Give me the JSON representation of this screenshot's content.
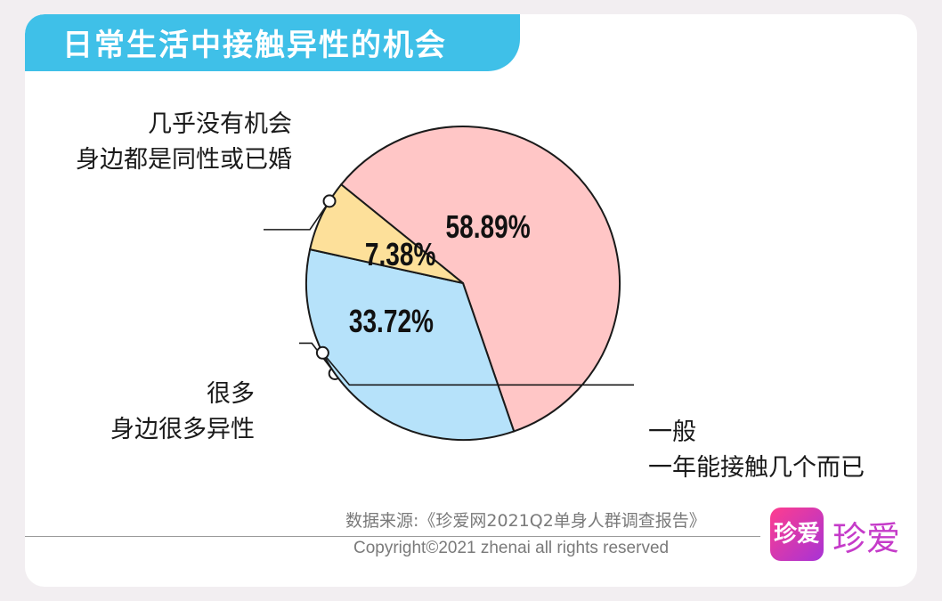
{
  "header": {
    "title": "日常生活中接触异性的机会"
  },
  "chart_data": {
    "type": "pie",
    "title": "日常生活中接触异性的机会",
    "slices": [
      {
        "key": "rare",
        "value": 58.89,
        "label": "58.89%",
        "color": "#ffc6c6",
        "legend_line1": "几乎没有机会",
        "legend_line2": "身边都是同性或已婚"
      },
      {
        "key": "general",
        "value": 33.72,
        "label": "33.72%",
        "color": "#b6e2fa",
        "legend_line1": "一般",
        "legend_line2": "一年能接触几个而已"
      },
      {
        "key": "many",
        "value": 7.38,
        "label": "7.38%",
        "color": "#fde09a",
        "legend_line1": "很多",
        "legend_line2": "身边很多异性"
      }
    ]
  },
  "footer": {
    "source": "数据来源:《珍爱网2021Q2单身人群调查报告》",
    "copyright": "Copyright©2021  zhenai  all rights reserved",
    "logo_icon_text": "珍爱",
    "logo_text": "珍爱"
  },
  "colors": {
    "title_bar": "#3fc0e8",
    "logo_gradient_start": "#ff3d8e",
    "logo_gradient_end": "#a733d6",
    "logo_text": "#c53bc9"
  }
}
